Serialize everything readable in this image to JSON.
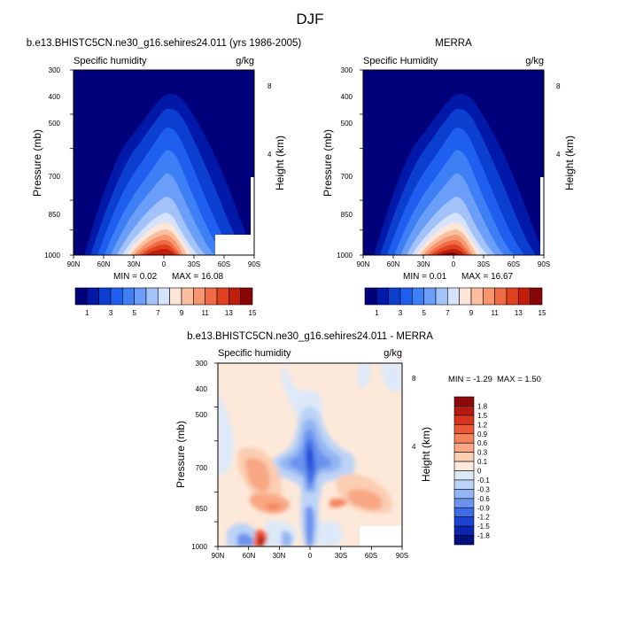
{
  "page": {
    "title": "DJF"
  },
  "chart_data": [
    {
      "type": "contour",
      "title": "b.e13.BHISTC5CN.ne30_g16.sehires24.011 (yrs 1986-2005)",
      "left_string": "Specific humidity",
      "right_string": "g/kg",
      "ylabel": "Pressure (mb)",
      "ylabel_right": "Height (km)",
      "x_ticks": [
        "90N",
        "60N",
        "30N",
        "0",
        "30S",
        "60S",
        "90S"
      ],
      "y_ticks": [
        "300",
        "400",
        "500",
        "700",
        "850",
        "1000"
      ],
      "y_tick_values": [
        300,
        400,
        500,
        700,
        850,
        1000
      ],
      "height_ticks": [
        "8",
        "4"
      ],
      "min_label": "MIN =  0.02",
      "max_label": "MAX =  16.08",
      "colorbar_labels": [
        "1",
        "3",
        "5",
        "7",
        "9",
        "11",
        "13",
        "15"
      ],
      "colorbar_colors": [
        "#00007a",
        "#0019a8",
        "#0a3fd0",
        "#1f5ff0",
        "#3d7ff5",
        "#6a9ef8",
        "#a3c2f9",
        "#d5e3fc",
        "#fde6d8",
        "#fbbfa0",
        "#f7966e",
        "#f06b45",
        "#e0421f",
        "#c01d0b",
        "#8a0505"
      ]
    },
    {
      "type": "contour",
      "title": "MERRA",
      "left_string": "Specific Humidity",
      "right_string": "g/kg",
      "ylabel": "Pressure (mb)",
      "ylabel_right": "Height (km)",
      "x_ticks": [
        "90N",
        "60N",
        "30N",
        "0",
        "30S",
        "60S",
        "90S"
      ],
      "y_ticks": [
        "300",
        "400",
        "500",
        "700",
        "850",
        "1000"
      ],
      "y_tick_values": [
        300,
        400,
        500,
        700,
        850,
        1000
      ],
      "height_ticks": [
        "8",
        "4"
      ],
      "min_label": "MIN =  0.01",
      "max_label": "MAX =  16.67",
      "colorbar_labels": [
        "1",
        "3",
        "5",
        "7",
        "9",
        "11",
        "13",
        "15"
      ],
      "colorbar_colors": [
        "#00007a",
        "#0019a8",
        "#0a3fd0",
        "#1f5ff0",
        "#3d7ff5",
        "#6a9ef8",
        "#a3c2f9",
        "#d5e3fc",
        "#fde6d8",
        "#fbbfa0",
        "#f7966e",
        "#f06b45",
        "#e0421f",
        "#c01d0b",
        "#8a0505"
      ]
    },
    {
      "type": "contour",
      "title": "b.e13.BHISTC5CN.ne30_g16.sehires24.011 - MERRA",
      "left_string": "Specific humidity",
      "right_string": "g/kg",
      "ylabel": "Pressure (mb)",
      "ylabel_right": "Height (km)",
      "x_ticks": [
        "90N",
        "60N",
        "30N",
        "0",
        "30S",
        "60S",
        "90S"
      ],
      "y_ticks": [
        "300",
        "400",
        "500",
        "700",
        "850",
        "1000"
      ],
      "y_tick_values": [
        300,
        400,
        500,
        700,
        850,
        1000
      ],
      "height_ticks": [
        "8",
        "4"
      ],
      "min_label": "MIN =  -1.29",
      "max_label": "MAX =   1.50",
      "colorbar_labels": [
        "1.8",
        "1.5",
        "1.2",
        "0.9",
        "0.6",
        "0.3",
        "0.1",
        "0",
        "-0.1",
        "-0.3",
        "-0.6",
        "-0.9",
        "-1.2",
        "-1.5",
        "-1.8"
      ],
      "colorbar_colors": [
        "#8c0a0a",
        "#b51a10",
        "#d8331c",
        "#ec5a35",
        "#f4845c",
        "#f8a884",
        "#fbcdb1",
        "#fde9da",
        "#dde9f8",
        "#bcd3f6",
        "#93b5f2",
        "#6a93ed",
        "#3e6ce6",
        "#1c44d2",
        "#0a26b0",
        "#00117e"
      ]
    }
  ]
}
